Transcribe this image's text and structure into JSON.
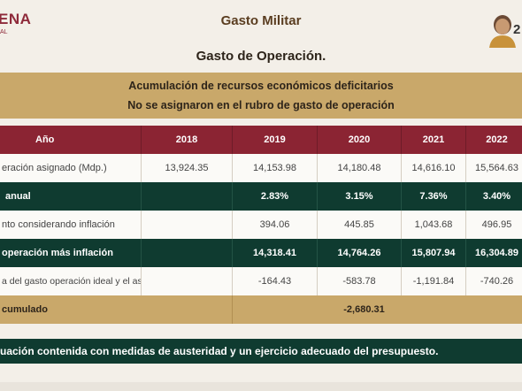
{
  "header": {
    "logo_text": "ENA",
    "logo_sub": "AL",
    "title": "Gasto Militar",
    "subtitle": "Gasto de Operación.",
    "avatar_text": "2"
  },
  "banner": {
    "line1": "Acumulación de recursos económicos deficitarios",
    "line2": "No se asignaron en el rubro de gasto de operación"
  },
  "table": {
    "headers": [
      "Año",
      "2018",
      "2019",
      "2020",
      "2021",
      "2022"
    ],
    "rows": [
      {
        "label": "eración asignado (Mdp.)",
        "values": [
          "13,924.35",
          "14,153.98",
          "14,180.48",
          "14,616.10",
          "15,564.63"
        ]
      },
      {
        "label": "anual",
        "values": [
          "",
          "2.83%",
          "3.15%",
          "7.36%",
          "3.40%"
        ]
      },
      {
        "label": "nto considerando inflación",
        "values": [
          "",
          "394.06",
          "445.85",
          "1,043.68",
          "496.95"
        ]
      },
      {
        "label": " operación más inflación",
        "values": [
          "",
          "14,318.41",
          "14,764.26",
          "15,807.94",
          "16,304.89"
        ]
      },
      {
        "label": "a del gasto operación ideal y el asignado",
        "values": [
          "",
          "-164.43",
          "-583.78",
          "-1,191.84",
          "-740.26"
        ]
      }
    ],
    "total": {
      "label": "cumulado",
      "value": "-2,680.31"
    }
  },
  "footer": {
    "text": "uación contenida con medidas de austeridad y un ejercicio adecuado del presupuesto."
  },
  "colors": {
    "burgundy": "#8b2433",
    "dark_green": "#0f3b30",
    "tan": "#c9a86a",
    "background": "#f3efe8"
  }
}
